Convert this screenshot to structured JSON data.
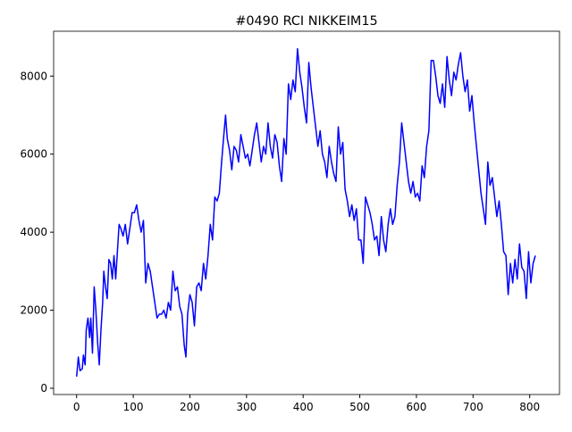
{
  "chart_data": {
    "type": "line",
    "title": "#0490 RCI NIKKEIM15",
    "color": "#0000ff",
    "x": [
      0,
      3,
      6,
      10,
      12,
      15,
      17,
      20,
      23,
      25,
      28,
      31,
      34,
      37,
      40,
      43,
      46,
      48,
      51,
      54,
      57,
      60,
      63,
      66,
      69,
      72,
      75,
      78,
      82,
      86,
      90,
      94,
      98,
      102,
      106,
      110,
      114,
      118,
      122,
      126,
      130,
      134,
      138,
      142,
      146,
      150,
      154,
      158,
      162,
      166,
      170,
      174,
      178,
      182,
      186,
      190,
      193,
      196,
      200,
      204,
      208,
      212,
      216,
      220,
      224,
      228,
      232,
      236,
      240,
      244,
      248,
      252,
      256,
      260,
      263,
      266,
      270,
      274,
      278,
      282,
      286,
      290,
      294,
      298,
      302,
      306,
      310,
      314,
      318,
      322,
      326,
      330,
      334,
      338,
      342,
      346,
      350,
      354,
      358,
      362,
      366,
      370,
      374,
      378,
      382,
      386,
      390,
      394,
      398,
      402,
      406,
      410,
      414,
      418,
      422,
      426,
      430,
      434,
      438,
      442,
      446,
      450,
      454,
      458,
      462,
      466,
      470,
      474,
      478,
      482,
      486,
      490,
      494,
      498,
      502,
      506,
      510,
      514,
      518,
      522,
      526,
      530,
      534,
      538,
      542,
      546,
      550,
      554,
      558,
      562,
      566,
      570,
      574,
      578,
      582,
      586,
      590,
      594,
      598,
      602,
      606,
      610,
      614,
      618,
      622,
      626,
      630,
      634,
      638,
      642,
      646,
      650,
      654,
      658,
      662,
      666,
      670,
      674,
      678,
      682,
      686,
      690,
      694,
      698,
      702,
      706,
      710,
      714,
      718,
      722,
      726,
      730,
      734,
      738,
      742,
      746,
      750,
      754,
      758,
      762,
      766,
      770,
      774,
      778,
      782,
      786,
      790,
      794,
      798,
      802,
      806,
      810
    ],
    "values": [
      300,
      800,
      450,
      500,
      850,
      600,
      1500,
      1800,
      1300,
      1800,
      900,
      2600,
      2000,
      1200,
      600,
      1500,
      2200,
      3000,
      2600,
      2300,
      3300,
      3200,
      2800,
      3400,
      2800,
      3500,
      4200,
      4100,
      3900,
      4200,
      3700,
      4100,
      4500,
      4500,
      4700,
      4300,
      4000,
      4300,
      2700,
      3200,
      3000,
      2600,
      2200,
      1800,
      1900,
      1900,
      2000,
      1800,
      2200,
      2000,
      3000,
      2500,
      2600,
      2100,
      1900,
      1100,
      800,
      1900,
      2400,
      2200,
      1600,
      2600,
      2700,
      2500,
      3200,
      2800,
      3400,
      4200,
      3800,
      4900,
      4800,
      5000,
      5800,
      6500,
      7000,
      6400,
      6100,
      5600,
      6200,
      6100,
      5800,
      6500,
      6200,
      5900,
      6000,
      5700,
      6100,
      6500,
      6800,
      6300,
      5800,
      6200,
      6000,
      6800,
      6200,
      5900,
      6500,
      6300,
      5700,
      5300,
      6400,
      6000,
      7800,
      7400,
      7900,
      7600,
      8700,
      8100,
      7700,
      7200,
      6800,
      8350,
      7700,
      7200,
      6700,
      6200,
      6600,
      6000,
      5800,
      5400,
      6200,
      5800,
      5500,
      5300,
      6700,
      6000,
      6300,
      5100,
      4800,
      4400,
      4700,
      4300,
      4600,
      3800,
      3800,
      3200,
      4900,
      4700,
      4500,
      4200,
      3800,
      3900,
      3400,
      4400,
      3800,
      3500,
      4200,
      4600,
      4200,
      4400,
      5200,
      5800,
      6800,
      6300,
      5800,
      5300,
      5000,
      5300,
      4900,
      5000,
      4800,
      5700,
      5400,
      6200,
      6600,
      8400,
      8400,
      8000,
      7500,
      7300,
      7800,
      7200,
      8500,
      7900,
      7500,
      8100,
      7900,
      8300,
      8600,
      8000,
      7600,
      7900,
      7100,
      7500,
      6800,
      6200,
      5600,
      5000,
      4600,
      4200,
      5800,
      5200,
      5400,
      4900,
      4400,
      4800,
      4200,
      3500,
      3400,
      2400,
      3200,
      2700,
      3300,
      2800,
      3700,
      3100,
      3000,
      2300,
      3500,
      2700,
      3200,
      3400
    ],
    "xlim": [
      -40.6,
      852.6
    ],
    "ylim": [
      -160,
      9150
    ],
    "xticks": [
      0,
      100,
      200,
      300,
      400,
      500,
      600,
      700,
      800
    ],
    "yticks": [
      0,
      2000,
      4000,
      6000,
      8000
    ]
  }
}
